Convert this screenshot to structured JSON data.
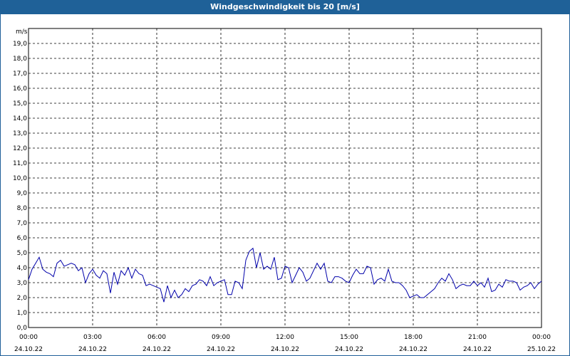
{
  "window": {
    "title": "Windgeschwindigkeit bis 20 [m/s]"
  },
  "colors": {
    "titlebar": "#1f6198",
    "line": "#0000aa",
    "grid": "#000000"
  },
  "chart_data": {
    "type": "line",
    "title": "Windgeschwindigkeit bis 20 [m/s]",
    "ylabel": "m/s",
    "ylim": [
      0,
      20
    ],
    "yticks": [
      "0,0",
      "1,0",
      "2,0",
      "3,0",
      "4,0",
      "5,0",
      "6,0",
      "7,0",
      "8,0",
      "9,0",
      "10,0",
      "11,0",
      "12,0",
      "13,0",
      "14,0",
      "15,0",
      "16,0",
      "17,0",
      "18,0",
      "19,0"
    ],
    "xlim": [
      "24.10.22 00:00",
      "25.10.22 00:00"
    ],
    "xticks": [
      {
        "time": "00:00",
        "date": "24.10.22"
      },
      {
        "time": "03:00",
        "date": "24.10.22"
      },
      {
        "time": "06:00",
        "date": "24.10.22"
      },
      {
        "time": "09:00",
        "date": "24.10.22"
      },
      {
        "time": "12:00",
        "date": "24.10.22"
      },
      {
        "time": "15:00",
        "date": "24.10.22"
      },
      {
        "time": "18:00",
        "date": "24.10.22"
      },
      {
        "time": "21:00",
        "date": "24.10.22"
      },
      {
        "time": "00:00",
        "date": "25.10.22"
      }
    ],
    "grid": true,
    "series": [
      {
        "x": [
          "00:00",
          "00:10",
          "00:20",
          "00:30",
          "00:40",
          "00:50",
          "01:00",
          "01:10",
          "01:20",
          "01:30",
          "01:40",
          "01:50",
          "02:00",
          "02:10",
          "02:20",
          "02:30",
          "02:40",
          "02:50",
          "03:00",
          "03:10",
          "03:20",
          "03:30",
          "03:40",
          "03:50",
          "04:00",
          "04:10",
          "04:20",
          "04:30",
          "04:40",
          "04:50",
          "05:00",
          "05:10",
          "05:20",
          "05:30",
          "05:40",
          "05:50",
          "06:00",
          "06:10",
          "06:20",
          "06:30",
          "06:40",
          "06:50",
          "07:00",
          "07:10",
          "07:20",
          "07:30",
          "07:40",
          "07:50",
          "08:00",
          "08:10",
          "08:20",
          "08:30",
          "08:40",
          "08:50",
          "09:00",
          "09:10",
          "09:20",
          "09:30",
          "09:40",
          "09:50",
          "10:00",
          "10:10",
          "10:20",
          "10:30",
          "10:40",
          "10:50",
          "11:00",
          "11:10",
          "11:20",
          "11:30",
          "11:40",
          "11:50",
          "12:00",
          "12:10",
          "12:20",
          "12:30",
          "12:40",
          "12:50",
          "13:00",
          "13:10",
          "13:20",
          "13:30",
          "13:40",
          "13:50",
          "14:00",
          "14:10",
          "14:20",
          "14:30",
          "14:40",
          "14:50",
          "15:00",
          "15:10",
          "15:20",
          "15:30",
          "15:40",
          "15:50",
          "16:00",
          "16:10",
          "16:20",
          "16:30",
          "16:40",
          "16:50",
          "17:00",
          "17:10",
          "17:20",
          "17:30",
          "17:40",
          "17:50",
          "18:00",
          "18:10",
          "18:20",
          "18:30",
          "18:40",
          "18:50",
          "19:00",
          "19:10",
          "19:20",
          "19:30",
          "19:40",
          "19:50",
          "20:00",
          "20:10",
          "20:20",
          "20:30",
          "20:40",
          "20:50",
          "21:00",
          "21:10",
          "21:20",
          "21:30",
          "21:40",
          "21:50",
          "22:00",
          "22:10",
          "22:20",
          "22:30",
          "22:40",
          "22:50",
          "23:00",
          "23:10",
          "23:20",
          "23:30",
          "23:40",
          "23:50",
          "24:00"
        ],
        "values": [
          3.2,
          3.9,
          4.3,
          4.7,
          3.9,
          3.7,
          3.6,
          3.4,
          4.3,
          4.5,
          4.1,
          4.2,
          4.3,
          4.2,
          3.8,
          4.0,
          3.0,
          3.6,
          3.9,
          3.5,
          3.3,
          3.8,
          3.6,
          2.3,
          3.7,
          2.9,
          3.8,
          3.5,
          4.0,
          3.3,
          3.9,
          3.6,
          3.5,
          2.8,
          2.9,
          2.8,
          2.7,
          2.6,
          1.7,
          2.8,
          2.0,
          2.5,
          2.0,
          2.2,
          2.6,
          2.4,
          2.8,
          2.9,
          3.2,
          3.1,
          2.8,
          3.4,
          2.8,
          3.0,
          3.1,
          3.2,
          2.2,
          2.2,
          3.1,
          3.0,
          2.6,
          4.5,
          5.1,
          5.3,
          4.0,
          5.0,
          3.9,
          4.1,
          3.9,
          4.7,
          3.2,
          3.3,
          4.1,
          4.0,
          3.0,
          3.5,
          4.0,
          3.7,
          3.1,
          3.3,
          3.8,
          4.3,
          3.9,
          4.3,
          3.1,
          3.0,
          3.4,
          3.4,
          3.3,
          3.1,
          3.0,
          3.5,
          3.9,
          3.6,
          3.6,
          4.1,
          4.0,
          2.9,
          3.2,
          3.3,
          3.1,
          3.9,
          3.1,
          3.0,
          3.0,
          2.8,
          2.5,
          2.0,
          2.1,
          2.2,
          2.0,
          2.0,
          2.2,
          2.4,
          2.6,
          3.0,
          3.3,
          3.1,
          3.6,
          3.2,
          2.6,
          2.8,
          2.9,
          2.8,
          2.8,
          3.1,
          2.8,
          3.0,
          2.7,
          3.3,
          2.4,
          2.5,
          2.9,
          2.7,
          3.2,
          3.1,
          3.1,
          3.0,
          2.5,
          2.7,
          2.8,
          3.0,
          2.6,
          2.9,
          3.1
        ]
      }
    ]
  }
}
